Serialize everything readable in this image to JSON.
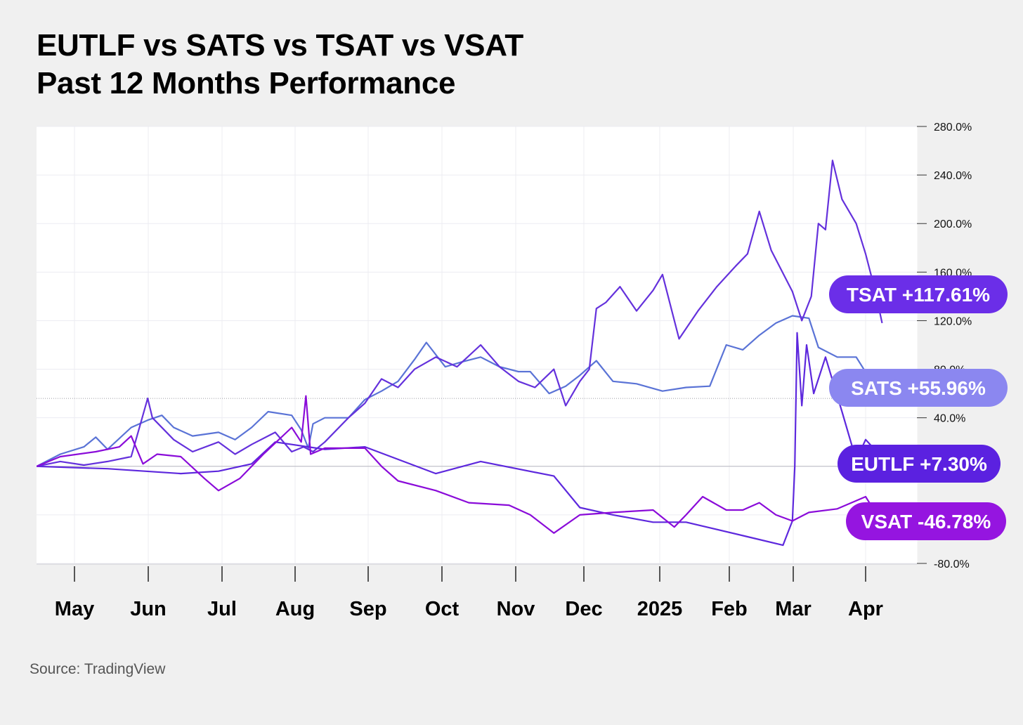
{
  "title_line1": "EUTLF vs SATS vs TSAT vs VSAT",
  "title_line2": "Past 12 Months Performance",
  "source": "Source: TradingView",
  "chart_data": {
    "type": "line",
    "x_tick_labels": [
      "May",
      "Jun",
      "Jul",
      "Aug",
      "Sep",
      "Oct",
      "Nov",
      "Dec",
      "2025",
      "Feb",
      "Mar",
      "Apr"
    ],
    "x_tick_dates": [
      "2024-05-01",
      "2024-06-01",
      "2024-07-01",
      "2024-08-01",
      "2024-09-01",
      "2024-10-01",
      "2024-11-01",
      "2024-12-01",
      "2025-01-01",
      "2025-02-01",
      "2025-03-01",
      "2025-04-01"
    ],
    "y_tick_labels": [
      "280.0%",
      "240.0%",
      "200.0%",
      "160.0%",
      "120.0%",
      "80.0%",
      "40.0%",
      "-80.0%"
    ],
    "ylim": [
      -80,
      280
    ],
    "y_unit": "%",
    "grid": true,
    "series": [
      {
        "name": "SATS",
        "color": "#5a73d6",
        "final_label": "SATS +55.96%",
        "final_value": 55.96,
        "label_color": "#8b87f0",
        "points": [
          [
            "2024-04-15",
            0
          ],
          [
            "2024-04-25",
            10
          ],
          [
            "2024-05-05",
            16
          ],
          [
            "2024-05-10",
            24
          ],
          [
            "2024-05-15",
            14
          ],
          [
            "2024-05-25",
            32
          ],
          [
            "2024-06-01",
            38
          ],
          [
            "2024-06-07",
            42
          ],
          [
            "2024-06-12",
            32
          ],
          [
            "2024-06-20",
            25
          ],
          [
            "2024-07-01",
            28
          ],
          [
            "2024-07-08",
            22
          ],
          [
            "2024-07-15",
            32
          ],
          [
            "2024-07-22",
            45
          ],
          [
            "2024-08-01",
            42
          ],
          [
            "2024-08-05",
            30
          ],
          [
            "2024-08-08",
            15
          ],
          [
            "2024-08-10",
            35
          ],
          [
            "2024-08-15",
            40
          ],
          [
            "2024-08-25",
            40
          ],
          [
            "2024-09-01",
            55
          ],
          [
            "2024-09-08",
            62
          ],
          [
            "2024-09-15",
            70
          ],
          [
            "2024-09-22",
            88
          ],
          [
            "2024-09-27",
            102
          ],
          [
            "2024-10-05",
            82
          ],
          [
            "2024-10-12",
            86
          ],
          [
            "2024-10-20",
            90
          ],
          [
            "2024-10-28",
            82
          ],
          [
            "2024-11-05",
            78
          ],
          [
            "2024-11-10",
            78
          ],
          [
            "2024-11-18",
            60
          ],
          [
            "2024-11-25",
            66
          ],
          [
            "2024-12-01",
            75
          ],
          [
            "2024-12-08",
            87
          ],
          [
            "2024-12-15",
            70
          ],
          [
            "2024-12-25",
            68
          ],
          [
            "2025-01-05",
            62
          ],
          [
            "2025-01-15",
            65
          ],
          [
            "2025-01-25",
            66
          ],
          [
            "2025-02-01",
            100
          ],
          [
            "2025-02-08",
            96
          ],
          [
            "2025-02-15",
            108
          ],
          [
            "2025-02-22",
            118
          ],
          [
            "2025-03-01",
            124
          ],
          [
            "2025-03-08",
            122
          ],
          [
            "2025-03-12",
            98
          ],
          [
            "2025-03-20",
            90
          ],
          [
            "2025-03-28",
            90
          ],
          [
            "2025-04-08",
            56
          ]
        ]
      },
      {
        "name": "TSAT",
        "color": "#6431dc",
        "final_label": "TSAT +117.61%",
        "final_value": 117.61,
        "label_color": "#6b2ee8",
        "points": [
          [
            "2024-04-15",
            0
          ],
          [
            "2024-04-25",
            4
          ],
          [
            "2024-05-05",
            1
          ],
          [
            "2024-05-15",
            4
          ],
          [
            "2024-05-25",
            8
          ],
          [
            "2024-06-01",
            56
          ],
          [
            "2024-06-03",
            40
          ],
          [
            "2024-06-12",
            22
          ],
          [
            "2024-06-20",
            12
          ],
          [
            "2024-07-01",
            20
          ],
          [
            "2024-07-08",
            10
          ],
          [
            "2024-07-15",
            18
          ],
          [
            "2024-07-25",
            28
          ],
          [
            "2024-08-01",
            12
          ],
          [
            "2024-08-06",
            16
          ],
          [
            "2024-08-10",
            12
          ],
          [
            "2024-08-15",
            20
          ],
          [
            "2024-08-25",
            40
          ],
          [
            "2024-09-01",
            52
          ],
          [
            "2024-09-08",
            72
          ],
          [
            "2024-09-15",
            65
          ],
          [
            "2024-09-22",
            80
          ],
          [
            "2024-10-01",
            90
          ],
          [
            "2024-10-10",
            82
          ],
          [
            "2024-10-20",
            100
          ],
          [
            "2024-10-28",
            82
          ],
          [
            "2024-11-05",
            70
          ],
          [
            "2024-11-12",
            65
          ],
          [
            "2024-11-20",
            80
          ],
          [
            "2024-11-25",
            50
          ],
          [
            "2024-12-01",
            70
          ],
          [
            "2024-12-05",
            80
          ],
          [
            "2024-12-08",
            130
          ],
          [
            "2024-12-12",
            135
          ],
          [
            "2024-12-18",
            148
          ],
          [
            "2024-12-25",
            128
          ],
          [
            "2025-01-01",
            145
          ],
          [
            "2025-01-05",
            158
          ],
          [
            "2025-01-12",
            105
          ],
          [
            "2025-01-20",
            128
          ],
          [
            "2025-01-28",
            148
          ],
          [
            "2025-02-05",
            165
          ],
          [
            "2025-02-10",
            175
          ],
          [
            "2025-02-15",
            210
          ],
          [
            "2025-02-20",
            178
          ],
          [
            "2025-03-01",
            144
          ],
          [
            "2025-03-05",
            120
          ],
          [
            "2025-03-09",
            140
          ],
          [
            "2025-03-12",
            200
          ],
          [
            "2025-03-15",
            195
          ],
          [
            "2025-03-18",
            252
          ],
          [
            "2025-03-22",
            220
          ],
          [
            "2025-03-28",
            200
          ],
          [
            "2025-04-01",
            175
          ],
          [
            "2025-04-05",
            145
          ],
          [
            "2025-04-08",
            118
          ]
        ]
      },
      {
        "name": "EUTLF",
        "color": "#5d28dd",
        "final_label": "EUTLF +7.30%",
        "final_value": 7.3,
        "label_color": "#5b21e0",
        "points": [
          [
            "2024-04-15",
            0
          ],
          [
            "2024-05-15",
            -2
          ],
          [
            "2024-06-15",
            -6
          ],
          [
            "2024-07-01",
            -4
          ],
          [
            "2024-07-15",
            2
          ],
          [
            "2024-07-25",
            20
          ],
          [
            "2024-08-15",
            14
          ],
          [
            "2024-09-01",
            16
          ],
          [
            "2024-10-01",
            -6
          ],
          [
            "2024-10-20",
            4
          ],
          [
            "2024-11-20",
            -8
          ],
          [
            "2024-12-01",
            -34
          ],
          [
            "2024-12-15",
            -40
          ],
          [
            "2025-01-01",
            -46
          ],
          [
            "2025-01-15",
            -46
          ],
          [
            "2025-02-10",
            -58
          ],
          [
            "2025-02-25",
            -65
          ],
          [
            "2025-03-01",
            -45
          ],
          [
            "2025-03-02",
            0
          ],
          [
            "2025-03-03",
            110
          ],
          [
            "2025-03-05",
            50
          ],
          [
            "2025-03-07",
            100
          ],
          [
            "2025-03-10",
            60
          ],
          [
            "2025-03-15",
            90
          ],
          [
            "2025-03-22",
            45
          ],
          [
            "2025-03-28",
            5
          ],
          [
            "2025-04-01",
            22
          ],
          [
            "2025-04-08",
            7.3
          ]
        ]
      },
      {
        "name": "VSAT",
        "color": "#8a0bd9",
        "final_label": "VSAT -46.78%",
        "final_value": -46.78,
        "label_color": "#9515e0",
        "points": [
          [
            "2024-04-15",
            0
          ],
          [
            "2024-04-25",
            8
          ],
          [
            "2024-05-10",
            12
          ],
          [
            "2024-05-20",
            16
          ],
          [
            "2024-05-25",
            25
          ],
          [
            "2024-05-30",
            2
          ],
          [
            "2024-06-05",
            10
          ],
          [
            "2024-06-15",
            8
          ],
          [
            "2024-06-25",
            -10
          ],
          [
            "2024-07-01",
            -20
          ],
          [
            "2024-07-10",
            -10
          ],
          [
            "2024-07-20",
            10
          ],
          [
            "2024-08-01",
            32
          ],
          [
            "2024-08-05",
            20
          ],
          [
            "2024-08-07",
            58
          ],
          [
            "2024-08-09",
            10
          ],
          [
            "2024-08-15",
            15
          ],
          [
            "2024-09-01",
            15
          ],
          [
            "2024-09-08",
            0
          ],
          [
            "2024-09-15",
            -12
          ],
          [
            "2024-10-01",
            -20
          ],
          [
            "2024-10-15",
            -30
          ],
          [
            "2024-11-01",
            -32
          ],
          [
            "2024-11-10",
            -40
          ],
          [
            "2024-11-20",
            -55
          ],
          [
            "2024-12-01",
            -40
          ],
          [
            "2024-12-15",
            -38
          ],
          [
            "2025-01-01",
            -36
          ],
          [
            "2025-01-10",
            -50
          ],
          [
            "2025-01-15",
            -40
          ],
          [
            "2025-01-22",
            -25
          ],
          [
            "2025-02-01",
            -36
          ],
          [
            "2025-02-08",
            -36
          ],
          [
            "2025-02-15",
            -30
          ],
          [
            "2025-02-22",
            -40
          ],
          [
            "2025-03-01",
            -45
          ],
          [
            "2025-03-08",
            -38
          ],
          [
            "2025-03-20",
            -35
          ],
          [
            "2025-04-01",
            -25
          ],
          [
            "2025-04-08",
            -46.78
          ]
        ]
      }
    ]
  }
}
